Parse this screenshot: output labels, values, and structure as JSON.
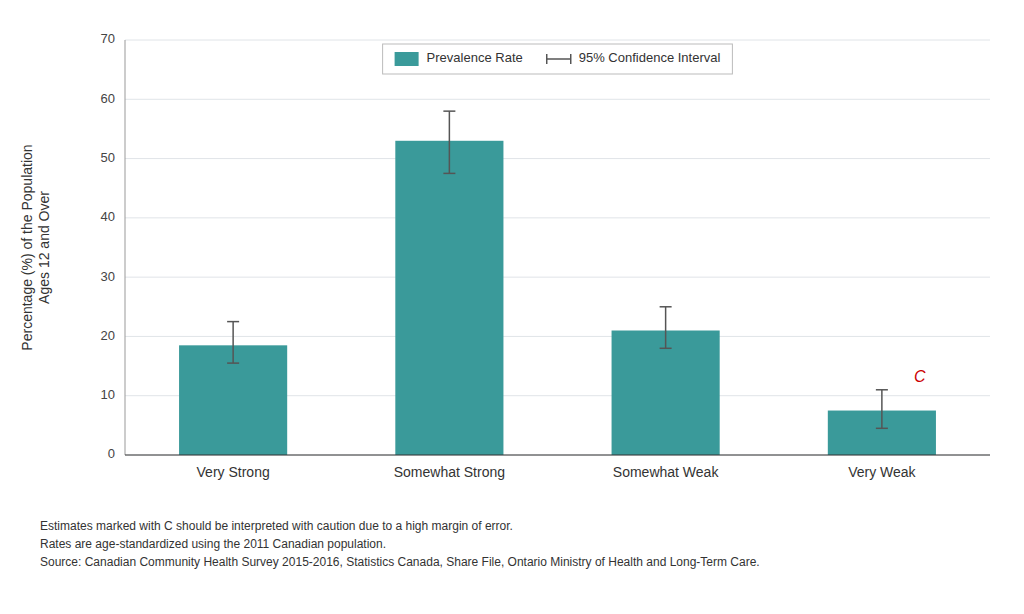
{
  "chart_data": {
    "type": "bar",
    "categories": [
      "Very Strong",
      "Somewhat Strong",
      "Somewhat Weak",
      "Very Weak"
    ],
    "series": [
      {
        "name": "Prevalence Rate",
        "color": "#3a9a9a",
        "values": [
          18.5,
          53.0,
          21.0,
          7.5
        ],
        "ci_lower": [
          15.5,
          47.5,
          18.0,
          4.5
        ],
        "ci_upper": [
          22.5,
          58.0,
          25.0,
          11.0
        ],
        "ci_name": "95% Confidence Interval",
        "ci_color": "#555555"
      }
    ],
    "ylabel": "Percentage (%) of the Population\nAges 12 and Over",
    "ylim": [
      0,
      70
    ],
    "yticks": [
      0,
      10,
      20,
      30,
      40,
      50,
      60,
      70
    ],
    "grid": true,
    "legend": "top",
    "annotations": [
      {
        "text": "C",
        "category": "Very Weak",
        "color": "#cc0000"
      }
    ],
    "notes": [
      "Estimates marked with C should be interpreted with caution due to a high margin of error.",
      "Rates are age-standardized using the 2011 Canadian population.",
      "Source: Canadian Community Health Survey 2015-2016, Statistics Canada, Share File, Ontario Ministry of Health and Long-Term Care."
    ]
  }
}
